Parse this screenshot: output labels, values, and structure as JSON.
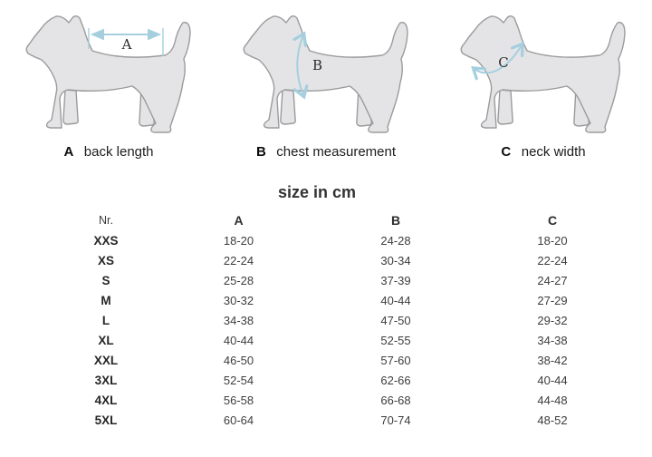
{
  "figures": [
    {
      "letter": "A",
      "caption": "back length"
    },
    {
      "letter": "B",
      "caption": "chest measurement"
    },
    {
      "letter": "C",
      "caption": "neck width"
    }
  ],
  "size_table": {
    "title": "size in cm",
    "columns": [
      "Nr.",
      "A",
      "B",
      "C"
    ],
    "rows": [
      [
        "XXS",
        "18-20",
        "24-28",
        "18-20"
      ],
      [
        "XS",
        "22-24",
        "30-34",
        "22-24"
      ],
      [
        "S",
        "25-28",
        "37-39",
        "24-27"
      ],
      [
        "M",
        "30-32",
        "40-44",
        "27-29"
      ],
      [
        "L",
        "34-38",
        "47-50",
        "29-32"
      ],
      [
        "XL",
        "40-44",
        "52-55",
        "34-38"
      ],
      [
        "XXL",
        "46-50",
        "57-60",
        "38-42"
      ],
      [
        "3XL",
        "52-54",
        "62-66",
        "40-44"
      ],
      [
        "4XL",
        "56-58",
        "66-68",
        "44-48"
      ],
      [
        "5XL",
        "60-64",
        "70-74",
        "48-52"
      ]
    ]
  },
  "chart_data": {
    "type": "table",
    "title": "size in cm",
    "columns": [
      "Nr.",
      "A back length",
      "B chest measurement",
      "C neck width"
    ],
    "rows": [
      [
        "XXS",
        "18-20",
        "24-28",
        "18-20"
      ],
      [
        "XS",
        "22-24",
        "30-34",
        "22-24"
      ],
      [
        "S",
        "25-28",
        "37-39",
        "24-27"
      ],
      [
        "M",
        "30-32",
        "40-44",
        "27-29"
      ],
      [
        "L",
        "34-38",
        "47-50",
        "29-32"
      ],
      [
        "XL",
        "40-44",
        "52-55",
        "34-38"
      ],
      [
        "XXL",
        "46-50",
        "57-60",
        "38-42"
      ],
      [
        "3XL",
        "52-54",
        "62-66",
        "40-44"
      ],
      [
        "4XL",
        "56-58",
        "66-68",
        "44-48"
      ],
      [
        "5XL",
        "60-64",
        "70-74",
        "48-52"
      ]
    ]
  },
  "colors": {
    "dog_fill": "#e4e4e6",
    "dog_outline": "#9b9b9b",
    "arrow": "#a5cfdf",
    "text": "#333333"
  }
}
